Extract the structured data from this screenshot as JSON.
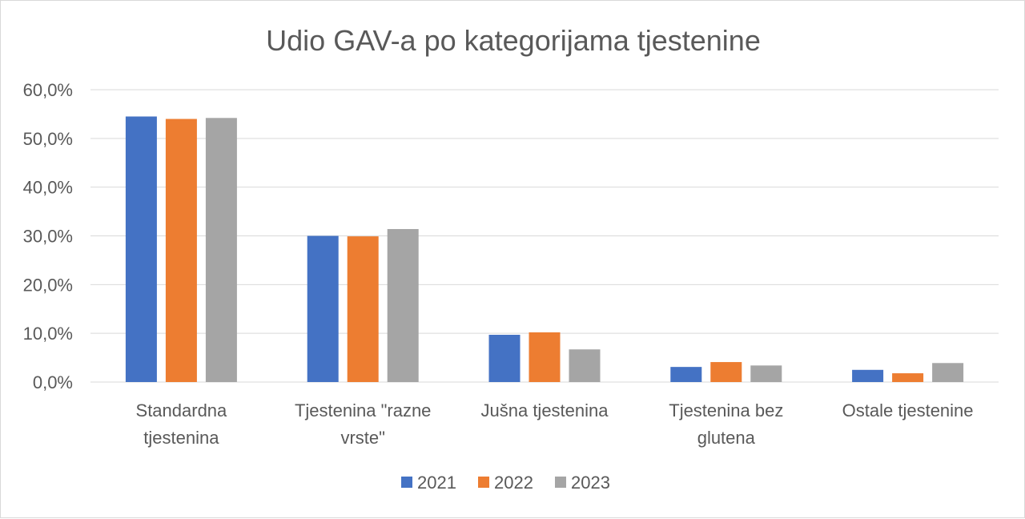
{
  "chart_data": {
    "type": "bar",
    "title": "Udio GAV-a po kategorijama tjestenine",
    "xlabel": "",
    "ylabel": "",
    "categories": [
      [
        "Standardna",
        "tjestenina"
      ],
      [
        "Tjestenina \"razne",
        "vrste\""
      ],
      [
        "Jušna tjestenina"
      ],
      [
        "Tjestenina bez",
        "glutena"
      ],
      [
        "Ostale tjestenine"
      ]
    ],
    "series": [
      {
        "name": "2021",
        "color": "#4472c4",
        "values": [
          54.5,
          30.0,
          9.7,
          3.1,
          2.5
        ]
      },
      {
        "name": "2022",
        "color": "#ed7d31",
        "values": [
          54.0,
          29.9,
          10.2,
          4.1,
          1.8
        ]
      },
      {
        "name": "2023",
        "color": "#a5a5a5",
        "values": [
          54.2,
          31.4,
          6.7,
          3.4,
          3.9
        ]
      }
    ],
    "ylim": [
      0,
      60
    ],
    "yticks": [
      "0,0%",
      "10,0%",
      "20,0%",
      "30,0%",
      "40,0%",
      "50,0%",
      "60,0%"
    ],
    "grid": true,
    "legend_position": "bottom",
    "gridline_color": "#d9d9d9"
  }
}
